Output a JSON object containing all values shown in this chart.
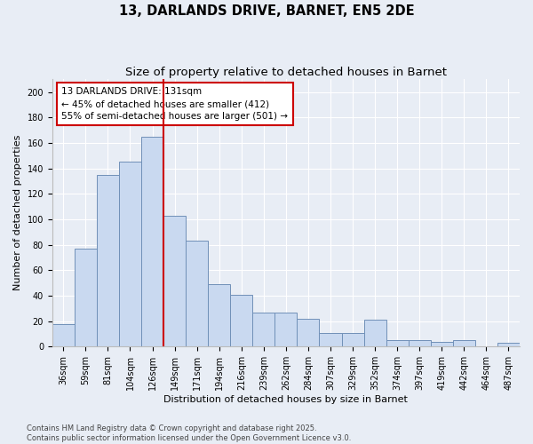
{
  "title": "13, DARLANDS DRIVE, BARNET, EN5 2DE",
  "subtitle": "Size of property relative to detached houses in Barnet",
  "xlabel": "Distribution of detached houses by size in Barnet",
  "ylabel": "Number of detached properties",
  "categories": [
    "36sqm",
    "59sqm",
    "81sqm",
    "104sqm",
    "126sqm",
    "149sqm",
    "171sqm",
    "194sqm",
    "216sqm",
    "239sqm",
    "262sqm",
    "284sqm",
    "307sqm",
    "329sqm",
    "352sqm",
    "374sqm",
    "397sqm",
    "419sqm",
    "442sqm",
    "464sqm",
    "487sqm"
  ],
  "values": [
    18,
    77,
    135,
    145,
    165,
    103,
    83,
    49,
    41,
    27,
    27,
    22,
    11,
    11,
    21,
    5,
    5,
    4,
    5,
    0,
    3
  ],
  "bar_color": "#c9d9f0",
  "bar_edge_color": "#7090b8",
  "vline_x_index": 4.5,
  "vline_color": "#cc0000",
  "annotation_text": "13 DARLANDS DRIVE: 131sqm\n← 45% of detached houses are smaller (412)\n55% of semi-detached houses are larger (501) →",
  "annotation_box_color": "#ffffff",
  "annotation_box_edge": "#cc0000",
  "ylim": [
    0,
    210
  ],
  "yticks": [
    0,
    20,
    40,
    60,
    80,
    100,
    120,
    140,
    160,
    180,
    200
  ],
  "background_color": "#e8edf5",
  "footer_text": "Contains HM Land Registry data © Crown copyright and database right 2025.\nContains public sector information licensed under the Open Government Licence v3.0.",
  "title_fontsize": 10.5,
  "subtitle_fontsize": 9.5,
  "axis_label_fontsize": 8,
  "tick_fontsize": 7,
  "footer_fontsize": 6,
  "annotation_fontsize": 7.5
}
